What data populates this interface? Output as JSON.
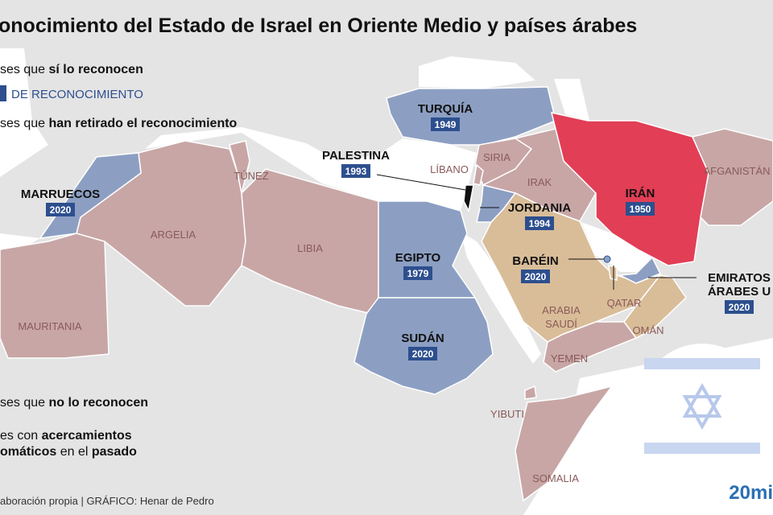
{
  "header": {
    "title": "onocimiento del Estado de Israel en Oriente Medio y países árabes"
  },
  "legend": [
    {
      "parts": [
        "ses que ",
        "sí lo reconocen"
      ]
    },
    {
      "parts": [
        "DE RECONOCIMIENTO"
      ]
    },
    {
      "parts": [
        "ses que ",
        "han retirado el reconocimiento"
      ]
    },
    {
      "parts": [
        "ses que ",
        "no lo reconocen"
      ]
    },
    {
      "parts": [
        "es con ",
        "acercamientos",
        "omáticos",
        " en el ",
        "pasado"
      ]
    }
  ],
  "countries": [
    {
      "name": "TURQUÍA",
      "year": "1949"
    },
    {
      "name": "PALESTINA",
      "year": "1993"
    },
    {
      "name": "MARRUECOS",
      "year": "2020"
    },
    {
      "name": "JORDANIA",
      "year": "1994"
    },
    {
      "name": "IRÁN",
      "year": "1950"
    },
    {
      "name": "EGIPTO",
      "year": "1979"
    },
    {
      "name": "BARÉIN",
      "year": "2020"
    },
    {
      "name": [
        "EMIRATOS",
        "ÁRABES U"
      ],
      "year": "2020"
    },
    {
      "name": "SUDÁN",
      "year": "2020"
    },
    {
      "name": "SIRIA"
    },
    {
      "name": "LÍBANO"
    },
    {
      "name": "IRAK"
    },
    {
      "name": "AFGANISTÁN"
    },
    {
      "name": "TÚNEZ"
    },
    {
      "name": "ARGELIA"
    },
    {
      "name": "LIBIA"
    },
    {
      "name": "MAURITANIA"
    },
    {
      "name": [
        "ARABIA",
        "SAUDÍ"
      ]
    },
    {
      "name": "QATAR"
    },
    {
      "name": "OMÁN"
    },
    {
      "name": "YEMEN"
    },
    {
      "name": "YIBUTI"
    },
    {
      "name": "SOMALIA"
    }
  ],
  "footer": {
    "source": "aboración propia  |  GRÁFICO: Henar de Pedro",
    "logo": "20mi"
  }
}
